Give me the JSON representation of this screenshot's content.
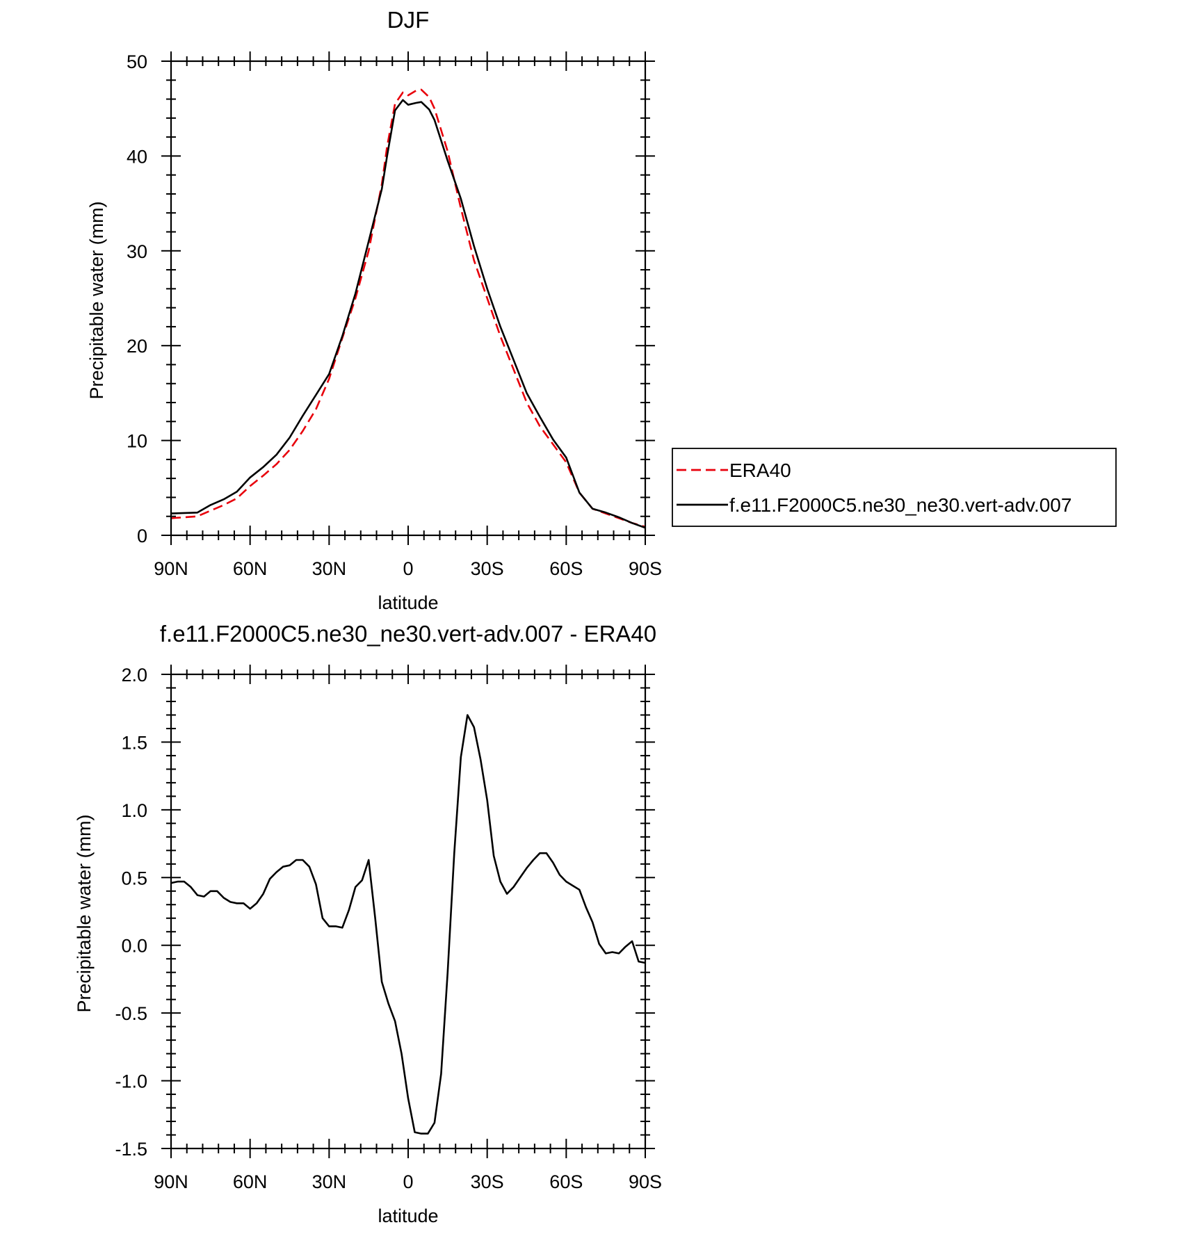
{
  "colors": {
    "era40": "#e8000b",
    "model": "#000000"
  },
  "legend": {
    "placement": "right of top panel"
  },
  "chart_data": [
    {
      "type": "line",
      "title": "DJF",
      "xlabel": "latitude",
      "ylabel": "Precipitable water (mm)",
      "xlim": [
        -90,
        90
      ],
      "ylim": [
        0,
        50
      ],
      "xticks": [
        -90,
        -60,
        -30,
        0,
        30,
        60,
        90
      ],
      "xtick_labels": [
        "90N",
        "60N",
        "30N",
        "0",
        "30S",
        "60S",
        "90S"
      ],
      "yticks": [
        0,
        10,
        20,
        30,
        40,
        50
      ],
      "ytick_labels": [
        "0",
        "10",
        "20",
        "30",
        "40",
        "50"
      ],
      "grid": false,
      "series": [
        {
          "name": "ERA40",
          "color": "#e8000b",
          "dash": "dashed",
          "x": [
            -90,
            -80,
            -75,
            -70,
            -65,
            -60,
            -55,
            -50,
            -45,
            -40,
            -35,
            -30,
            -25,
            -20,
            -15,
            -10,
            -8,
            -5,
            -2,
            0,
            3,
            5,
            8,
            10,
            15,
            20,
            25,
            30,
            35,
            40,
            45,
            50,
            55,
            60,
            65,
            70,
            75,
            80,
            85,
            90
          ],
          "y": [
            1.8,
            2.0,
            2.6,
            3.2,
            3.9,
            5.2,
            6.3,
            7.5,
            9.0,
            11.0,
            13.3,
            16.5,
            20.8,
            25.0,
            30.0,
            37.0,
            41.0,
            45.5,
            46.7,
            46.4,
            46.9,
            47.0,
            46.2,
            45.0,
            40.5,
            34.5,
            29.0,
            25.0,
            21.0,
            17.5,
            14.0,
            11.5,
            9.6,
            7.7,
            4.5,
            2.8,
            2.3,
            1.8,
            1.3,
            0.9
          ]
        },
        {
          "name": "f.e11.F2000C5.ne30_ne30.vert-adv.007",
          "color": "#000000",
          "dash": "solid",
          "x": [
            -90,
            -80,
            -75,
            -70,
            -65,
            -60,
            -55,
            -50,
            -45,
            -40,
            -35,
            -30,
            -25,
            -20,
            -15,
            -10,
            -8,
            -5,
            -2,
            0,
            3,
            5,
            8,
            10,
            15,
            20,
            25,
            30,
            35,
            40,
            45,
            50,
            55,
            60,
            65,
            70,
            75,
            80,
            85,
            90
          ],
          "y": [
            2.3,
            2.4,
            3.2,
            3.8,
            4.6,
            6.1,
            7.2,
            8.5,
            10.3,
            12.6,
            14.8,
            17.0,
            21.0,
            25.5,
            31.0,
            36.5,
            40.0,
            44.8,
            45.9,
            45.4,
            45.6,
            45.7,
            44.9,
            43.8,
            39.5,
            35.5,
            30.5,
            26.0,
            22.0,
            18.5,
            15.0,
            12.5,
            10.1,
            8.2,
            4.5,
            2.8,
            2.4,
            1.9,
            1.3,
            0.8
          ]
        }
      ]
    },
    {
      "type": "line",
      "title": "f.e11.F2000C5.ne30_ne30.vert-adv.007 - ERA40",
      "xlabel": "latitude",
      "ylabel": "Precipitable water (mm)",
      "xlim": [
        -90,
        90
      ],
      "ylim": [
        -1.5,
        2.0
      ],
      "xticks": [
        -90,
        -60,
        -30,
        0,
        30,
        60,
        90
      ],
      "xtick_labels": [
        "90N",
        "60N",
        "30N",
        "0",
        "30S",
        "60S",
        "90S"
      ],
      "yticks": [
        -1.5,
        -1.0,
        -0.5,
        0.0,
        0.5,
        1.0,
        1.5,
        2.0
      ],
      "ytick_labels": [
        "-1.5",
        "-1.0",
        "-0.5",
        "0.0",
        "0.5",
        "1.0",
        "1.5",
        "2.0"
      ],
      "grid": false,
      "series": [
        {
          "color": "#000000",
          "dash": "solid",
          "x": [
            -90,
            -87.5,
            -85,
            -82.5,
            -80,
            -77.5,
            -75,
            -72.5,
            -70,
            -67.5,
            -65,
            -62.5,
            -60,
            -57.5,
            -55,
            -52.5,
            -50,
            -47.5,
            -45,
            -42.5,
            -40,
            -37.5,
            -35,
            -32.5,
            -30,
            -27.5,
            -25,
            -22.5,
            -20,
            -17.5,
            -15,
            -12.5,
            -10,
            -7.5,
            -5,
            -2.5,
            0,
            2.5,
            5,
            7.5,
            10,
            12.5,
            15,
            17.5,
            20,
            22.5,
            25,
            27.5,
            30,
            32.5,
            35,
            37.5,
            40,
            42.5,
            45,
            47.5,
            50,
            52.5,
            55,
            57.5,
            60,
            62.5,
            65,
            67.5,
            70,
            72.5,
            75,
            77.5,
            80,
            82.5,
            85,
            87.5,
            90
          ],
          "y": [
            0.46,
            0.47,
            0.47,
            0.43,
            0.37,
            0.36,
            0.4,
            0.4,
            0.35,
            0.32,
            0.31,
            0.31,
            0.27,
            0.31,
            0.38,
            0.49,
            0.54,
            0.58,
            0.59,
            0.63,
            0.63,
            0.58,
            0.45,
            0.2,
            0.14,
            0.14,
            0.13,
            0.26,
            0.43,
            0.48,
            0.63,
            0.2,
            -0.27,
            -0.43,
            -0.56,
            -0.8,
            -1.13,
            -1.38,
            -1.39,
            -1.39,
            -1.31,
            -0.95,
            -0.2,
            0.68,
            1.39,
            1.7,
            1.61,
            1.37,
            1.07,
            0.66,
            0.47,
            0.38,
            0.43,
            0.5,
            0.57,
            0.63,
            0.68,
            0.68,
            0.61,
            0.52,
            0.47,
            0.44,
            0.41,
            0.28,
            0.17,
            0.01,
            -0.06,
            -0.05,
            -0.06,
            -0.01,
            0.03,
            -0.12,
            -0.13
          ]
        }
      ]
    }
  ]
}
